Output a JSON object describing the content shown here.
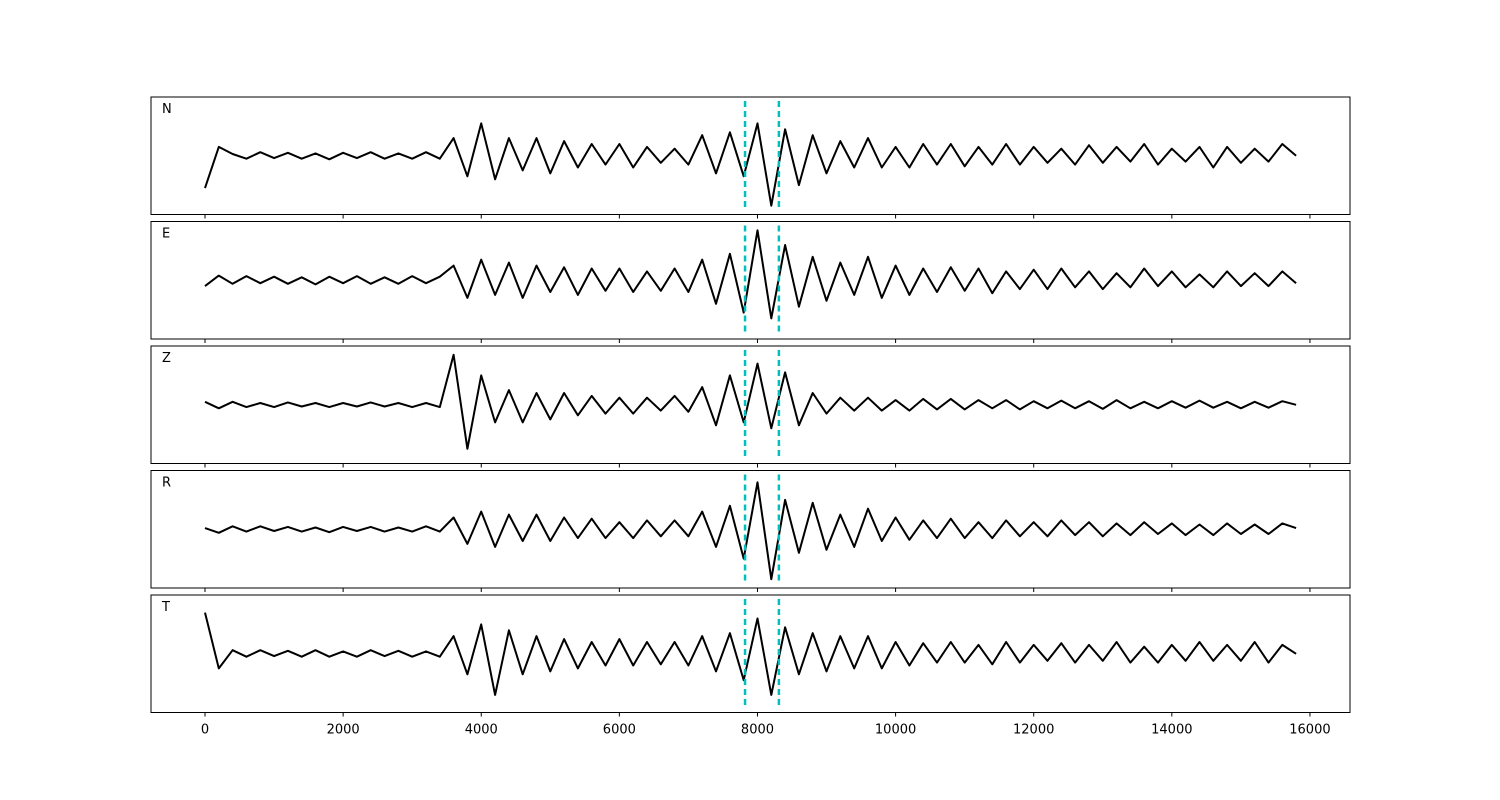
{
  "chart_data": {
    "type": "line",
    "layout": "stacked",
    "x": [
      0,
      200,
      400,
      600,
      800,
      1000,
      1200,
      1400,
      1600,
      1800,
      2000,
      2200,
      2400,
      2600,
      2800,
      3000,
      3200,
      3400,
      3600,
      3800,
      4000,
      4200,
      4400,
      4600,
      4800,
      5000,
      5200,
      5400,
      5600,
      5800,
      6000,
      6200,
      6400,
      6600,
      6800,
      7000,
      7200,
      7400,
      7600,
      7800,
      8000,
      8200,
      8400,
      8600,
      8800,
      9000,
      9200,
      9400,
      9600,
      9800,
      10000,
      10200,
      10400,
      10600,
      10800,
      11000,
      11200,
      11400,
      11600,
      11800,
      12000,
      12200,
      12400,
      12600,
      12800,
      13000,
      13200,
      13400,
      13600,
      13800,
      14000,
      14200,
      14400,
      14600,
      14800,
      15000,
      15200,
      15400,
      15600,
      15800
    ],
    "xlim": [
      -782,
      16580
    ],
    "xticks": [
      0,
      2000,
      4000,
      6000,
      8000,
      10000,
      12000,
      14000,
      16000
    ],
    "ylim": [
      -1,
      1
    ],
    "markers": [
      7820,
      8310
    ],
    "marker_color": "#00bfbf",
    "series": [
      {
        "name": "N",
        "color": "#000000",
        "values": [
          -0.55,
          0.15,
          0.03,
          -0.05,
          0.06,
          -0.04,
          0.05,
          -0.05,
          0.04,
          -0.06,
          0.05,
          -0.04,
          0.06,
          -0.05,
          0.04,
          -0.05,
          0.06,
          -0.05,
          0.3,
          -0.35,
          0.55,
          -0.4,
          0.3,
          -0.25,
          0.3,
          -0.3,
          0.25,
          -0.2,
          0.2,
          -0.15,
          0.2,
          -0.2,
          0.15,
          -0.12,
          0.12,
          -0.15,
          0.35,
          -0.3,
          0.4,
          -0.35,
          0.55,
          -0.85,
          0.45,
          -0.5,
          0.35,
          -0.3,
          0.25,
          -0.2,
          0.3,
          -0.2,
          0.15,
          -0.2,
          0.2,
          -0.15,
          0.2,
          -0.18,
          0.15,
          -0.15,
          0.2,
          -0.15,
          0.15,
          -0.12,
          0.12,
          -0.15,
          0.18,
          -0.12,
          0.15,
          -0.1,
          0.2,
          -0.15,
          0.12,
          -0.1,
          0.15,
          -0.2,
          0.15,
          -0.12,
          0.12,
          -0.1,
          0.2,
          0.0
        ]
      },
      {
        "name": "E",
        "color": "#000000",
        "values": [
          -0.1,
          0.08,
          -0.06,
          0.07,
          -0.05,
          0.06,
          -0.06,
          0.05,
          -0.07,
          0.06,
          -0.05,
          0.07,
          -0.06,
          0.05,
          -0.06,
          0.07,
          -0.05,
          0.06,
          0.25,
          -0.3,
          0.35,
          -0.25,
          0.3,
          -0.3,
          0.25,
          -0.2,
          0.22,
          -0.25,
          0.2,
          -0.18,
          0.2,
          -0.2,
          0.15,
          -0.18,
          0.2,
          -0.2,
          0.35,
          -0.4,
          0.45,
          -0.55,
          0.85,
          -0.65,
          0.6,
          -0.45,
          0.4,
          -0.35,
          0.3,
          -0.25,
          0.4,
          -0.3,
          0.25,
          -0.25,
          0.2,
          -0.2,
          0.22,
          -0.18,
          0.2,
          -0.22,
          0.15,
          -0.15,
          0.18,
          -0.15,
          0.2,
          -0.12,
          0.15,
          -0.15,
          0.12,
          -0.12,
          0.2,
          -0.1,
          0.15,
          -0.12,
          0.1,
          -0.12,
          0.15,
          -0.1,
          0.12,
          -0.1,
          0.15,
          -0.05
        ]
      },
      {
        "name": "Z",
        "color": "#000000",
        "values": [
          0.05,
          -0.06,
          0.05,
          -0.04,
          0.03,
          -0.04,
          0.04,
          -0.03,
          0.03,
          -0.04,
          0.03,
          -0.03,
          0.04,
          -0.03,
          0.03,
          -0.04,
          0.03,
          -0.04,
          0.85,
          -0.75,
          0.5,
          -0.3,
          0.25,
          -0.3,
          0.2,
          -0.25,
          0.2,
          -0.18,
          0.15,
          -0.15,
          0.12,
          -0.15,
          0.12,
          -0.1,
          0.15,
          -0.12,
          0.3,
          -0.35,
          0.5,
          -0.3,
          0.7,
          -0.4,
          0.55,
          -0.35,
          0.2,
          -0.15,
          0.12,
          -0.1,
          0.12,
          -0.1,
          0.08,
          -0.1,
          0.1,
          -0.08,
          0.1,
          -0.08,
          0.08,
          -0.06,
          0.08,
          -0.08,
          0.06,
          -0.06,
          0.07,
          -0.06,
          0.06,
          -0.07,
          0.08,
          -0.06,
          0.05,
          -0.06,
          0.06,
          -0.05,
          0.07,
          -0.05,
          0.05,
          -0.06,
          0.05,
          -0.05,
          0.06,
          0.0
        ]
      },
      {
        "name": "R",
        "color": "#000000",
        "values": [
          0.02,
          -0.06,
          0.05,
          -0.04,
          0.05,
          -0.03,
          0.04,
          -0.04,
          0.03,
          -0.05,
          0.04,
          -0.03,
          0.04,
          -0.04,
          0.03,
          -0.04,
          0.05,
          -0.04,
          0.2,
          -0.25,
          0.3,
          -0.3,
          0.25,
          -0.2,
          0.25,
          -0.2,
          0.2,
          -0.15,
          0.18,
          -0.15,
          0.12,
          -0.15,
          0.15,
          -0.12,
          0.15,
          -0.12,
          0.3,
          -0.3,
          0.4,
          -0.5,
          0.8,
          -0.85,
          0.5,
          -0.4,
          0.45,
          -0.35,
          0.25,
          -0.3,
          0.35,
          -0.2,
          0.2,
          -0.18,
          0.15,
          -0.15,
          0.18,
          -0.15,
          0.12,
          -0.15,
          0.15,
          -0.12,
          0.12,
          -0.12,
          0.15,
          -0.1,
          0.12,
          -0.12,
          0.1,
          -0.1,
          0.12,
          -0.08,
          0.1,
          -0.1,
          0.08,
          -0.1,
          0.1,
          -0.08,
          0.08,
          -0.08,
          0.1,
          0.02
        ]
      },
      {
        "name": "T",
        "color": "#000000",
        "values": [
          0.7,
          -0.25,
          0.06,
          -0.05,
          0.06,
          -0.04,
          0.05,
          -0.05,
          0.06,
          -0.05,
          0.04,
          -0.05,
          0.06,
          -0.04,
          0.05,
          -0.05,
          0.04,
          -0.05,
          0.3,
          -0.35,
          0.5,
          -0.7,
          0.4,
          -0.35,
          0.3,
          -0.3,
          0.25,
          -0.25,
          0.2,
          -0.2,
          0.25,
          -0.2,
          0.2,
          -0.18,
          0.2,
          -0.2,
          0.3,
          -0.3,
          0.35,
          -0.45,
          0.6,
          -0.7,
          0.45,
          -0.35,
          0.35,
          -0.3,
          0.3,
          -0.25,
          0.3,
          -0.25,
          0.2,
          -0.2,
          0.18,
          -0.15,
          0.2,
          -0.15,
          0.15,
          -0.18,
          0.2,
          -0.15,
          0.15,
          -0.12,
          0.18,
          -0.15,
          0.15,
          -0.12,
          0.2,
          -0.15,
          0.12,
          -0.15,
          0.15,
          -0.12,
          0.2,
          -0.12,
          0.15,
          -0.12,
          0.2,
          -0.15,
          0.15,
          0.0
        ]
      }
    ]
  }
}
